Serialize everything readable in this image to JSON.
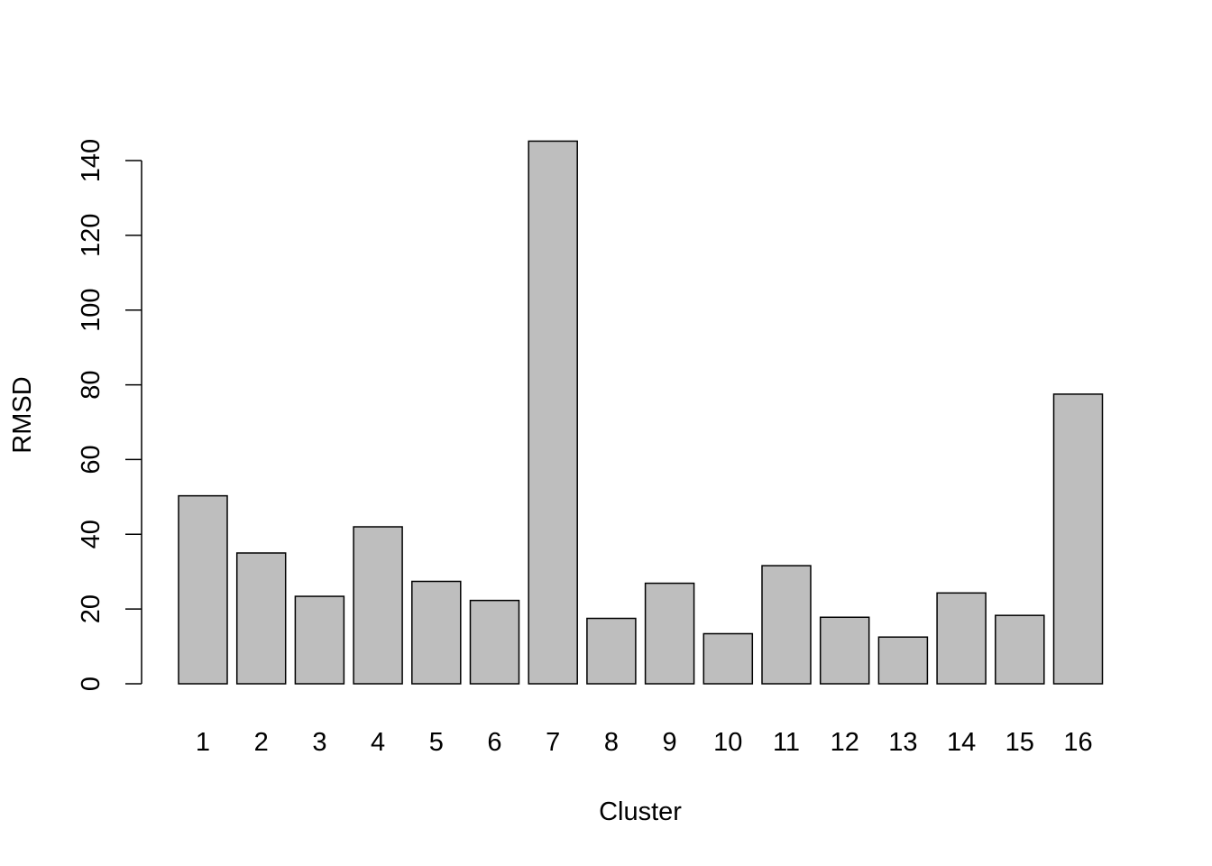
{
  "chart_data": {
    "type": "bar",
    "title": "",
    "xlabel": "Cluster",
    "ylabel": "RMSD",
    "categories": [
      "1",
      "2",
      "3",
      "4",
      "5",
      "6",
      "7",
      "8",
      "9",
      "10",
      "11",
      "12",
      "13",
      "14",
      "15",
      "16"
    ],
    "values": [
      50.3,
      35.0,
      23.4,
      42.0,
      27.4,
      22.3,
      145.2,
      17.5,
      26.9,
      13.4,
      31.6,
      17.8,
      12.5,
      24.3,
      18.3,
      77.5
    ],
    "ylim": [
      0,
      140
    ],
    "yticks": [
      "0",
      "20",
      "40",
      "60",
      "80",
      "100",
      "120",
      "140"
    ],
    "grid": false,
    "legend": "none",
    "bar_color": "#bebebe",
    "bar_border_color": "#000000"
  }
}
